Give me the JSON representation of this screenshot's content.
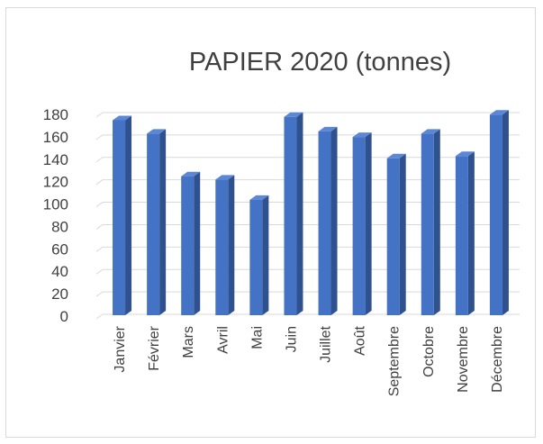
{
  "chart_data": {
    "type": "bar",
    "title": "PAPIER 2020 (tonnes)",
    "xlabel": "",
    "ylabel": "",
    "categories": [
      "Janvier",
      "Février",
      "Mars",
      "Avril",
      "Mai",
      "Juin",
      "Juillet",
      "Août",
      "Septembre",
      "Octobre",
      "Novembre",
      "Décembre"
    ],
    "values": [
      174,
      162,
      124,
      121,
      103,
      177,
      164,
      159,
      140,
      162,
      142,
      179
    ],
    "ylim": [
      0,
      180
    ],
    "yticks": [
      "0",
      "20",
      "40",
      "60",
      "80",
      "100",
      "120",
      "140",
      "160",
      "180"
    ],
    "grid": true,
    "legend": "none",
    "colors": {
      "bar_front": "#4472c4",
      "bar_side": "#2f528f",
      "bar_top": "#5b87d6",
      "grid": "#d9d9d9",
      "text": "#404040"
    }
  }
}
